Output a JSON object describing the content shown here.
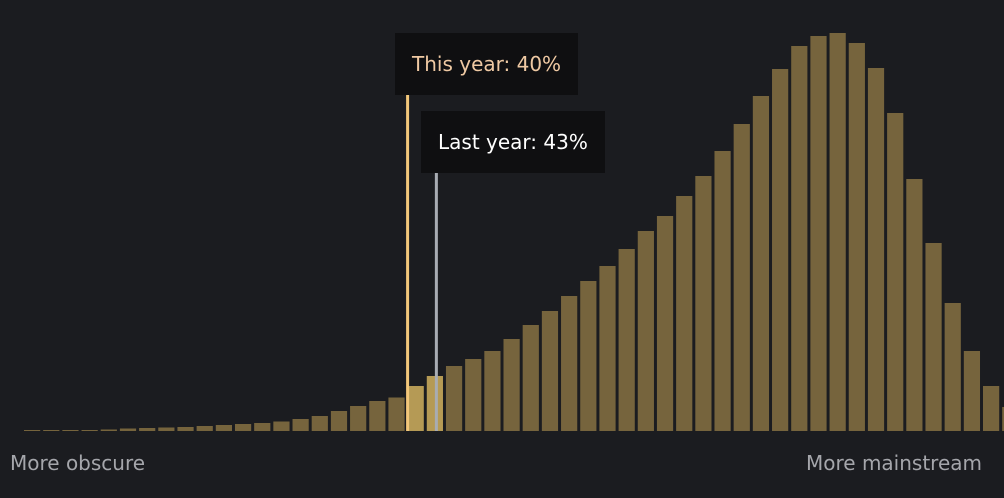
{
  "chart_data": {
    "type": "bar",
    "x_range": [
      0,
      100
    ],
    "bin_width": 2,
    "values": [
      1,
      1,
      1,
      1,
      1.5,
      2.5,
      3,
      3.5,
      4,
      5,
      6,
      7,
      8,
      9.5,
      12,
      15,
      20,
      25,
      30,
      33.5,
      45,
      55,
      65,
      72,
      80,
      92,
      106,
      120,
      135,
      150,
      165,
      182,
      200,
      215,
      235,
      255,
      280,
      307,
      335,
      362,
      385,
      395,
      398,
      388,
      363,
      318,
      252,
      188,
      128,
      80,
      45,
      24,
      17,
      9
    ],
    "markers": [
      {
        "name": "This year",
        "value": 40,
        "label": "This year: 40%",
        "color": "#f3c77a"
      },
      {
        "name": "Last year",
        "value": 43,
        "label": "Last year: 43%",
        "color": "#a8acb3"
      }
    ],
    "xlabel_left": "More obscure",
    "xlabel_right": "More mainstream",
    "colors": {
      "bar": "#76643d",
      "bar_highlight": "#b59a55",
      "background": "#1b1c20"
    },
    "grid": false,
    "legend": "none"
  }
}
